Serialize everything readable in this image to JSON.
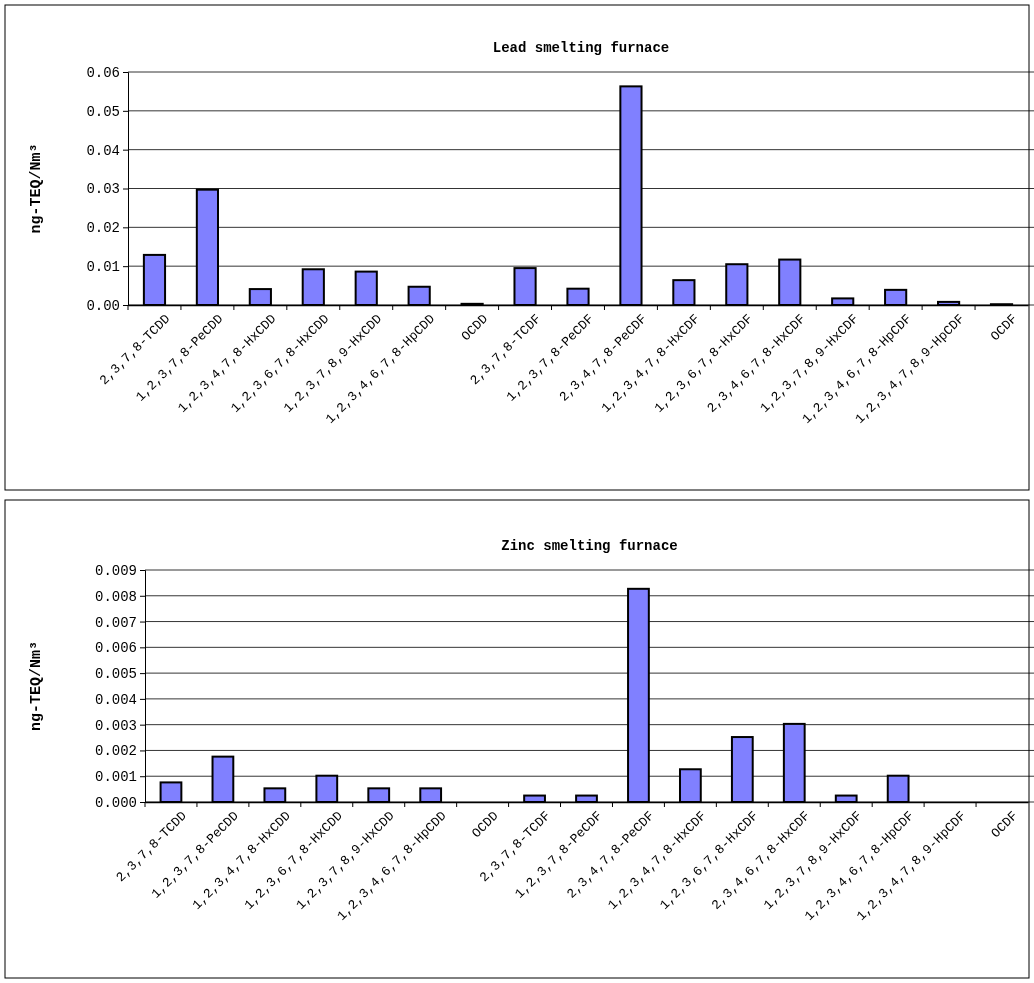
{
  "chart_data": [
    {
      "type": "bar",
      "title": "Lead smelting furnace",
      "ylabel": "ng-TEQ/Nm³",
      "categories": [
        "2,3,7,8-TCDD",
        "1,2,3,7,8-PeCDD",
        "1,2,3,4,7,8-HxCDD",
        "1,2,3,6,7,8-HxCDD",
        "1,2,3,7,8,9-HxCDD",
        "1,2,3,4,6,7,8-HpCDD",
        "OCDD",
        "2,3,7,8-TCDF",
        "1,2,3,7,8-PeCDF",
        "2,3,4,7,8-PeCDF",
        "1,2,3,4,7,8-HxCDF",
        "1,2,3,6,7,8-HxCDF",
        "2,3,4,6,7,8-HxCDF",
        "1,2,3,7,8,9-HxCDF",
        "1,2,3,4,6,7,8-HpCDF",
        "1,2,3,4,7,8,9-HpCDF",
        "OCDF"
      ],
      "values": [
        0.0129,
        0.0297,
        0.0041,
        0.0092,
        0.0086,
        0.0047,
        0.0003,
        0.0095,
        0.0042,
        0.0563,
        0.0064,
        0.0105,
        0.0117,
        0.0017,
        0.0039,
        0.0008,
        0.0002
      ],
      "color": "#8080ff",
      "ylim": [
        0,
        0.06
      ],
      "yticks": [
        {
          "value": 0,
          "label": "0.00"
        },
        {
          "value": 0.01,
          "label": "0.01"
        },
        {
          "value": 0.02,
          "label": "0.02"
        },
        {
          "value": 0.03,
          "label": "0.03"
        },
        {
          "value": 0.04,
          "label": "0.04"
        },
        {
          "value": 0.05,
          "label": "0.05"
        },
        {
          "value": 0.06,
          "label": "0.06"
        }
      ],
      "grid": "y"
    },
    {
      "type": "bar",
      "title": "Zinc smelting furnace",
      "ylabel": "ng-TEQ/Nm³",
      "categories": [
        "2,3,7,8-TCDD",
        "1,2,3,7,8-PeCDD",
        "1,2,3,4,7,8-HxCDD",
        "1,2,3,6,7,8-HxCDD",
        "1,2,3,7,8,9-HxCDD",
        "1,2,3,4,6,7,8-HpCDD",
        "OCDD",
        "2,3,7,8-TCDF",
        "1,2,3,7,8-PeCDF",
        "2,3,4,7,8-PeCDF",
        "1,2,3,4,7,8-HxCDF",
        "1,2,3,6,7,8-HxCDF",
        "2,3,4,6,7,8-HxCDF",
        "1,2,3,7,8,9-HxCDF",
        "1,2,3,4,6,7,8-HpCDF",
        "1,2,3,4,7,8,9-HpCDF",
        "OCDF"
      ],
      "values": [
        0.00076,
        0.00176,
        0.00053,
        0.00102,
        0.00053,
        0.00053,
        0,
        0.00025,
        0.00025,
        0.00827,
        0.00127,
        0.00252,
        0.00303,
        0.00025,
        0.00102,
        0,
        0
      ],
      "color": "#8080ff",
      "ylim": [
        0,
        0.009
      ],
      "yticks": [
        {
          "value": 0,
          "label": "0.000"
        },
        {
          "value": 0.001,
          "label": "0.001"
        },
        {
          "value": 0.002,
          "label": "0.002"
        },
        {
          "value": 0.003,
          "label": "0.003"
        },
        {
          "value": 0.004,
          "label": "0.004"
        },
        {
          "value": 0.005,
          "label": "0.005"
        },
        {
          "value": 0.006,
          "label": "0.006"
        },
        {
          "value": 0.007,
          "label": "0.007"
        },
        {
          "value": 0.008,
          "label": "0.008"
        },
        {
          "value": 0.009,
          "label": "0.009"
        }
      ],
      "grid": "y"
    }
  ]
}
